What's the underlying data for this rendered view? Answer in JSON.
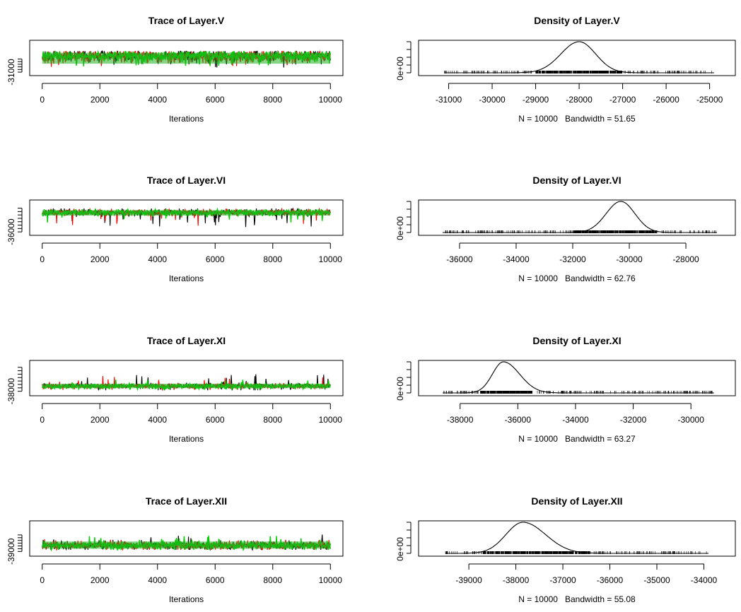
{
  "chart_data": [
    {
      "type": "line",
      "title": "Trace of Layer.V",
      "xlabel": "Iterations",
      "xlim": [
        0,
        10000
      ],
      "xticks": [
        0,
        2000,
        4000,
        6000,
        8000,
        10000
      ],
      "ylim": [
        -31400,
        -25200
      ],
      "ytick_labels": [
        {
          "value": -31000,
          "label": "-31000"
        }
      ],
      "y_minor_ticks": [
        -30500,
        -30000,
        -29500,
        -29000,
        -28500
      ],
      "grid": false,
      "series": [
        {
          "color": "#000000",
          "center": -28000,
          "lo": -30150,
          "hi": -27000
        },
        {
          "color": "#ff0000",
          "center": -28000,
          "lo": -30100,
          "hi": -27050
        },
        {
          "color": "#00cc00",
          "center": -28000,
          "lo": -30000,
          "hi": -27100
        }
      ],
      "band": {
        "lo": -29400,
        "hi": -27300
      }
    },
    {
      "type": "area",
      "title": "Density of Layer.V",
      "xlabel": "N = 10000   Bandwidth = 51.65",
      "xlim": [
        -31400,
        -24700
      ],
      "xticks": [
        -31000,
        -30000,
        -29000,
        -28000,
        -27000,
        -26000,
        -25000
      ],
      "ytick_labels": [
        {
          "value": 0,
          "label": "0e+00"
        }
      ],
      "y_minor_count": 5,
      "grid": false,
      "peak": -28000,
      "sd_left": 420,
      "sd_right": 380,
      "rug": {
        "lo": -31100,
        "hi": -24900,
        "dense_lo": -29000,
        "dense_hi": -27000
      }
    },
    {
      "type": "line",
      "title": "Trace of Layer.VI",
      "xlabel": "Iterations",
      "xlim": [
        0,
        10000
      ],
      "xticks": [
        0,
        2000,
        4000,
        6000,
        8000,
        10000
      ],
      "ylim": [
        -36600,
        -27000
      ],
      "ytick_labels": [
        {
          "value": -36000,
          "label": "-36000"
        }
      ],
      "y_minor_ticks": [
        -35000,
        -34000,
        -33000,
        -32000,
        -31000,
        -30000,
        -29000
      ],
      "grid": false,
      "series": [
        {
          "color": "#000000",
          "center": -30300,
          "lo": -34600,
          "hi": -29100
        },
        {
          "color": "#ff0000",
          "center": -30300,
          "lo": -34400,
          "hi": -29200
        },
        {
          "color": "#00cc00",
          "center": -30300,
          "lo": -33300,
          "hi": -29300
        }
      ],
      "band": {
        "lo": -31200,
        "hi": -29600
      }
    },
    {
      "type": "area",
      "title": "Density of Layer.VI",
      "xlabel": "N = 10000   Bandwidth = 62.76",
      "xlim": [
        -37000,
        -26700
      ],
      "xticks": [
        -36000,
        -34000,
        -32000,
        -30000,
        -28000
      ],
      "ytick_labels": [
        {
          "value": 0,
          "label": "0e+00"
        }
      ],
      "y_minor_count": 5,
      "grid": false,
      "peak": -30300,
      "sd_left": 520,
      "sd_right": 500,
      "rug": {
        "lo": -36600,
        "hi": -26900,
        "dense_lo": -32000,
        "dense_hi": -29000
      }
    },
    {
      "type": "line",
      "title": "Trace of Layer.XI",
      "xlabel": "Iterations",
      "xlim": [
        0,
        10000
      ],
      "xticks": [
        0,
        2000,
        4000,
        6000,
        8000,
        10000
      ],
      "ylim": [
        -38900,
        -29400
      ],
      "ytick_labels": [
        {
          "value": -38000,
          "label": "-38000"
        }
      ],
      "y_minor_ticks": [
        -37000,
        -36000,
        -35000,
        -34000,
        -33000,
        -32000,
        -31000
      ],
      "grid": false,
      "series": [
        {
          "color": "#000000",
          "center": -36500,
          "lo": -37700,
          "hi": -33000
        },
        {
          "color": "#ff0000",
          "center": -36500,
          "lo": -37600,
          "hi": -33500
        },
        {
          "color": "#00cc00",
          "center": -36500,
          "lo": -37400,
          "hi": -34500
        }
      ],
      "band": {
        "lo": -37100,
        "hi": -35800
      }
    },
    {
      "type": "area",
      "title": "Density of Layer.XI",
      "xlabel": "N = 10000   Bandwidth = 63.27",
      "xlim": [
        -39000,
        -28900
      ],
      "xticks": [
        -38000,
        -36000,
        -34000,
        -32000,
        -30000
      ],
      "ytick_labels": [
        {
          "value": 0,
          "label": "0e+00"
        }
      ],
      "y_minor_count": 5,
      "grid": false,
      "peak": -36500,
      "sd_left": 380,
      "sd_right": 560,
      "rug": {
        "lo": -38600,
        "hi": -29200,
        "dense_lo": -37300,
        "dense_hi": -35500
      }
    },
    {
      "type": "line",
      "title": "Trace of Layer.XII",
      "xlabel": "Iterations",
      "xlim": [
        0,
        10000
      ],
      "xticks": [
        0,
        2000,
        4000,
        6000,
        8000,
        10000
      ],
      "ylim": [
        -39600,
        -33700
      ],
      "ytick_labels": [
        {
          "value": -39000,
          "label": "-39000"
        }
      ],
      "y_minor_ticks": [
        -38500,
        -38000,
        -37500,
        -37000,
        -36500,
        -36000
      ],
      "grid": false,
      "series": [
        {
          "color": "#000000",
          "center": -37900,
          "lo": -38700,
          "hi": -35900
        },
        {
          "color": "#ff0000",
          "center": -37900,
          "lo": -38700,
          "hi": -36500
        },
        {
          "color": "#00cc00",
          "center": -37900,
          "lo": -38700,
          "hi": -36100
        }
      ],
      "band": {
        "lo": -38500,
        "hi": -37200
      }
    },
    {
      "type": "area",
      "title": "Density of Layer.XII",
      "xlabel": "N = 10000   Bandwidth = 55.08",
      "xlim": [
        -39800,
        -33600
      ],
      "xticks": [
        -39000,
        -38000,
        -37000,
        -36000,
        -35000,
        -34000
      ],
      "ytick_labels": [
        {
          "value": 0,
          "label": "0e+00"
        }
      ],
      "y_minor_count": 5,
      "grid": false,
      "peak": -37850,
      "sd_left": 360,
      "sd_right": 480,
      "rug": {
        "lo": -39500,
        "hi": -33900,
        "dense_lo": -38700,
        "dense_hi": -36400
      }
    }
  ]
}
